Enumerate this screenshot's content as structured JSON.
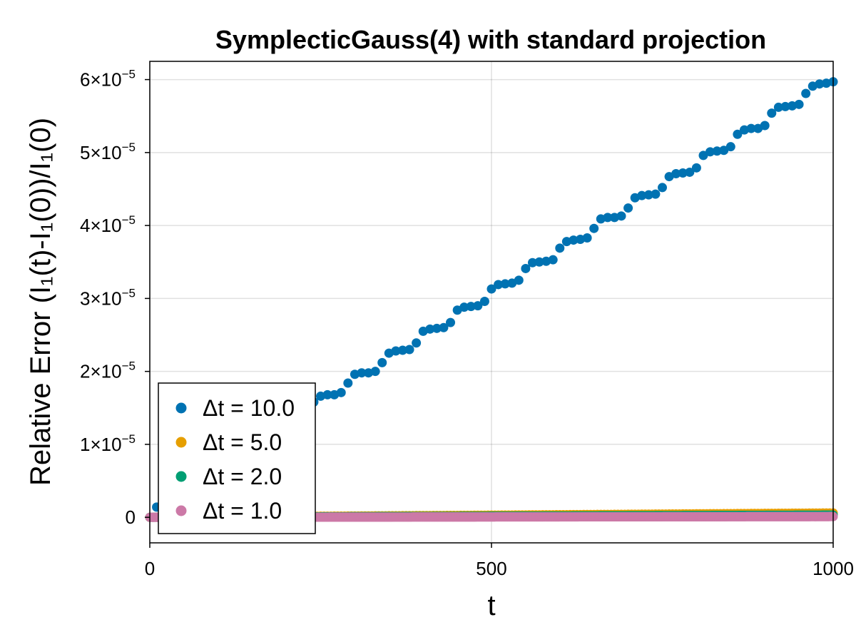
{
  "chart_data": {
    "type": "scatter",
    "title": "SymplecticGauss(4) with standard projection",
    "xlabel": "t",
    "ylabel": "Relative Error (I₁(t)-I₁(0))/I₁(0)",
    "xlim": [
      0,
      1000
    ],
    "ylim": [
      -3.5e-06,
      6.25e-05
    ],
    "x_ticks": [
      {
        "value": 0,
        "label": "0"
      },
      {
        "value": 500,
        "label": "500"
      },
      {
        "value": 1000,
        "label": "1000"
      }
    ],
    "y_ticks": [
      {
        "value": 0,
        "label": "0",
        "mantissa": "0",
        "exponent": ""
      },
      {
        "value": 1e-05,
        "label": "1×10⁻⁵",
        "mantissa": "1×10",
        "exponent": "−5"
      },
      {
        "value": 2e-05,
        "label": "2×10⁻⁵",
        "mantissa": "2×10",
        "exponent": "−5"
      },
      {
        "value": 3e-05,
        "label": "3×10⁻⁵",
        "mantissa": "3×10",
        "exponent": "−5"
      },
      {
        "value": 4e-05,
        "label": "4×10⁻⁵",
        "mantissa": "4×10",
        "exponent": "−5"
      },
      {
        "value": 5e-05,
        "label": "5×10⁻⁵",
        "mantissa": "5×10",
        "exponent": "−5"
      },
      {
        "value": 6e-05,
        "label": "6×10⁻⁵",
        "mantissa": "6×10",
        "exponent": "−5"
      }
    ],
    "grid": true,
    "legend_position": "bottom-left",
    "series": [
      {
        "name": "Δt = 10.0",
        "color": "#0072b2",
        "x": [
          10,
          20,
          30,
          40,
          50,
          60,
          70,
          80,
          90,
          100,
          110,
          120,
          130,
          140,
          150,
          160,
          170,
          180,
          190,
          200,
          210,
          220,
          230,
          240,
          250,
          260,
          270,
          280,
          290,
          300,
          310,
          320,
          330,
          340,
          350,
          360,
          370,
          380,
          390,
          400,
          410,
          420,
          430,
          440,
          450,
          460,
          470,
          480,
          490,
          500,
          510,
          520,
          530,
          540,
          550,
          560,
          570,
          580,
          590,
          600,
          610,
          620,
          630,
          640,
          650,
          660,
          670,
          680,
          690,
          700,
          710,
          720,
          730,
          740,
          750,
          760,
          770,
          780,
          790,
          800,
          810,
          820,
          830,
          840,
          850,
          860,
          870,
          880,
          890,
          900,
          910,
          920,
          930,
          940,
          950,
          960,
          970,
          980,
          990,
          1000
        ],
        "y": [
          1.4e-06,
          1.55e-06,
          1.68e-06,
          1.72e-06,
          1.76e-06,
          2.2e-06,
          4.6e-06,
          6.1e-06,
          6.7e-06,
          6.8e-06,
          6.9e-06,
          7.3e-06,
          9e-06,
          1.03e-05,
          1.05e-05,
          1.08e-05,
          1.12e-05,
          1.25e-05,
          1.32e-05,
          1.35e-05,
          1.37e-05,
          1.38e-05,
          1.42e-05,
          1.58e-05,
          1.66e-05,
          1.68e-05,
          1.68e-05,
          1.71e-05,
          1.84e-05,
          1.96e-05,
          1.98e-05,
          1.98e-05,
          2e-05,
          2.12e-05,
          2.25e-05,
          2.28e-05,
          2.29e-05,
          2.3e-05,
          2.39e-05,
          2.55e-05,
          2.58e-05,
          2.59e-05,
          2.6e-05,
          2.67e-05,
          2.84e-05,
          2.88e-05,
          2.89e-05,
          2.9e-05,
          2.96e-05,
          3.13e-05,
          3.19e-05,
          3.2e-05,
          3.21e-05,
          3.25e-05,
          3.41e-05,
          3.49e-05,
          3.5e-05,
          3.51e-05,
          3.53e-05,
          3.69e-05,
          3.78e-05,
          3.8e-05,
          3.81e-05,
          3.83e-05,
          3.96e-05,
          4.09e-05,
          4.11e-05,
          4.11e-05,
          4.13e-05,
          4.24e-05,
          4.38e-05,
          4.41e-05,
          4.42e-05,
          4.43e-05,
          4.52e-05,
          4.67e-05,
          4.71e-05,
          4.72e-05,
          4.73e-05,
          4.79e-05,
          4.96e-05,
          5.01e-05,
          5.02e-05,
          5.03e-05,
          5.08e-05,
          5.25e-05,
          5.31e-05,
          5.33e-05,
          5.33e-05,
          5.37e-05,
          5.54e-05,
          5.62e-05,
          5.63e-05,
          5.64e-05,
          5.66e-05,
          5.81e-05,
          5.91e-05,
          5.94e-05,
          5.95e-05,
          5.97e-05
        ]
      },
      {
        "name": "Δt = 5.0",
        "color": "#e69f00",
        "x_start": 0,
        "x_step": 5,
        "x_end": 1000,
        "y_start": 0,
        "y_end": 6e-07
      },
      {
        "name": "Δt = 2.0",
        "color": "#009e73",
        "x_start": 0,
        "x_step": 2,
        "x_end": 1000,
        "y_start": 0,
        "y_end": 3e-07
      },
      {
        "name": "Δt = 1.0",
        "color": "#cc79a7",
        "x_start": 0,
        "x_step": 1,
        "x_end": 1000,
        "y_start": 0,
        "y_end": 1e-07
      }
    ]
  }
}
